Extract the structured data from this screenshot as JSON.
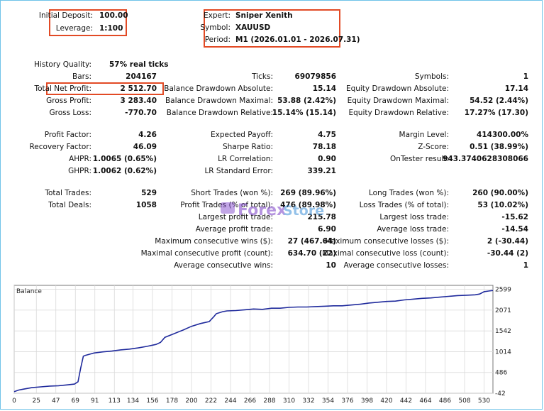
{
  "top_left": {
    "initial_deposit_label": "Initial Deposit:",
    "initial_deposit": "100.00",
    "leverage_label": "Leverage:",
    "leverage": "1:100"
  },
  "top_right": {
    "expert_label": "Expert:",
    "expert": "Sniper Xenith",
    "symbol_label": "Symbol:",
    "symbol": "XAUUSD",
    "period_label": "Period:",
    "period": "M1 (2026.01.01 - 2026.07.31)"
  },
  "stats": {
    "history_quality_label": "History Quality:",
    "history_quality": "57% real ticks",
    "col1": [
      {
        "label": "Bars:",
        "value": "204167"
      },
      {
        "label": "Total Net Profit:",
        "value": "2 512.70"
      },
      {
        "label": "Gross Profit:",
        "value": "3 283.40"
      },
      {
        "label": "Gross Loss:",
        "value": "-770.70"
      },
      {
        "label": "Profit Factor:",
        "value": "4.26"
      },
      {
        "label": "Recovery Factor:",
        "value": "46.09"
      },
      {
        "label": "AHPR:",
        "value": "1.0065 (0.65%)"
      },
      {
        "label": "GHPR:",
        "value": "1.0062 (0.62%)"
      },
      {
        "label": "Total Trades:",
        "value": "529"
      },
      {
        "label": "Total Deals:",
        "value": "1058"
      }
    ],
    "col2": [
      {
        "label": "Ticks:",
        "value": "69079856"
      },
      {
        "label": "Balance Drawdown Absolute:",
        "value": "15.14"
      },
      {
        "label": "Balance Drawdown Maximal:",
        "value": "53.88 (2.42%)"
      },
      {
        "label": "Balance Drawdown Relative:",
        "value": "15.14% (15.14)"
      },
      {
        "label": "Expected Payoff:",
        "value": "4.75"
      },
      {
        "label": "Sharpe Ratio:",
        "value": "78.18"
      },
      {
        "label": "LR Correlation:",
        "value": "0.90"
      },
      {
        "label": "LR Standard Error:",
        "value": "339.21"
      },
      {
        "label": "Short Trades (won %):",
        "value": "269 (89.96%)"
      },
      {
        "label": "Profit Trades (% of total):",
        "value": "476 (89.98%)"
      },
      {
        "label": "Largest profit trade:",
        "value": "215.78"
      },
      {
        "label": "Average profit trade:",
        "value": "6.90"
      },
      {
        "label": "Maximum consecutive wins ($):",
        "value": "27 (467.64)"
      },
      {
        "label": "Maximal consecutive profit (count):",
        "value": "634.70 (22)"
      },
      {
        "label": "Average consecutive wins:",
        "value": "10"
      }
    ],
    "col3": [
      {
        "label": "Symbols:",
        "value": "1"
      },
      {
        "label": "Equity Drawdown Absolute:",
        "value": "17.14"
      },
      {
        "label": "Equity Drawdown Maximal:",
        "value": "54.52 (2.44%)"
      },
      {
        "label": "Equity Drawdown Relative:",
        "value": "17.27% (17.30)"
      },
      {
        "label": "Margin Level:",
        "value": "414300.00%"
      },
      {
        "label": "Z-Score:",
        "value": "0.51 (38.99%)"
      },
      {
        "label": "OnTester result:",
        "value": "943.3740628308066"
      },
      {
        "label": "Long Trades (won %):",
        "value": "260 (90.00%)"
      },
      {
        "label": "Loss Trades (% of total):",
        "value": "53 (10.02%)"
      },
      {
        "label": "Largest loss trade:",
        "value": "-15.62"
      },
      {
        "label": "Average loss trade:",
        "value": "-14.54"
      },
      {
        "label": "Maximum consecutive losses ($):",
        "value": "2 (-30.44)"
      },
      {
        "label": "Maximal consecutive loss (count):",
        "value": "-30.44 (2)"
      },
      {
        "label": "Average consecutive losses:",
        "value": "1"
      }
    ]
  },
  "watermark": {
    "text_a": "Forex",
    "text_b": "Store"
  },
  "colors": {
    "highlight": "#e24a25",
    "line": "#1f2a9c",
    "grid": "#d9d9d9",
    "frame": "#6fc3e8"
  },
  "chart_data": {
    "type": "line",
    "title": "Balance",
    "x_ticks": [
      0,
      25,
      47,
      69,
      91,
      113,
      134,
      156,
      178,
      200,
      222,
      244,
      266,
      288,
      310,
      332,
      354,
      376,
      398,
      420,
      442,
      464,
      486,
      508,
      530
    ],
    "y_ticks": [
      -42,
      486,
      1014,
      1542,
      2071,
      2599
    ],
    "xlim": [
      0,
      540
    ],
    "ylim": [
      -42,
      2700
    ],
    "series": [
      {
        "values": [
          [
            0,
            0
          ],
          [
            5,
            40
          ],
          [
            10,
            60
          ],
          [
            20,
            100
          ],
          [
            30,
            120
          ],
          [
            40,
            140
          ],
          [
            50,
            150
          ],
          [
            60,
            170
          ],
          [
            68,
            190
          ],
          [
            72,
            250
          ],
          [
            75,
            600
          ],
          [
            78,
            900
          ],
          [
            80,
            920
          ],
          [
            90,
            980
          ],
          [
            100,
            1010
          ],
          [
            110,
            1030
          ],
          [
            120,
            1060
          ],
          [
            130,
            1080
          ],
          [
            140,
            1110
          ],
          [
            150,
            1150
          ],
          [
            160,
            1200
          ],
          [
            165,
            1250
          ],
          [
            170,
            1380
          ],
          [
            180,
            1470
          ],
          [
            190,
            1560
          ],
          [
            200,
            1660
          ],
          [
            210,
            1730
          ],
          [
            220,
            1780
          ],
          [
            225,
            1900
          ],
          [
            228,
            1980
          ],
          [
            235,
            2030
          ],
          [
            240,
            2050
          ],
          [
            250,
            2060
          ],
          [
            260,
            2080
          ],
          [
            270,
            2100
          ],
          [
            280,
            2090
          ],
          [
            290,
            2120
          ],
          [
            300,
            2120
          ],
          [
            310,
            2140
          ],
          [
            320,
            2150
          ],
          [
            330,
            2150
          ],
          [
            340,
            2160
          ],
          [
            350,
            2170
          ],
          [
            360,
            2180
          ],
          [
            370,
            2180
          ],
          [
            380,
            2200
          ],
          [
            390,
            2220
          ],
          [
            400,
            2250
          ],
          [
            410,
            2270
          ],
          [
            420,
            2290
          ],
          [
            430,
            2300
          ],
          [
            440,
            2330
          ],
          [
            450,
            2350
          ],
          [
            460,
            2370
          ],
          [
            470,
            2380
          ],
          [
            480,
            2400
          ],
          [
            490,
            2420
          ],
          [
            500,
            2440
          ],
          [
            510,
            2450
          ],
          [
            520,
            2460
          ],
          [
            525,
            2480
          ],
          [
            530,
            2540
          ],
          [
            535,
            2555
          ],
          [
            540,
            2570
          ]
        ]
      }
    ]
  }
}
